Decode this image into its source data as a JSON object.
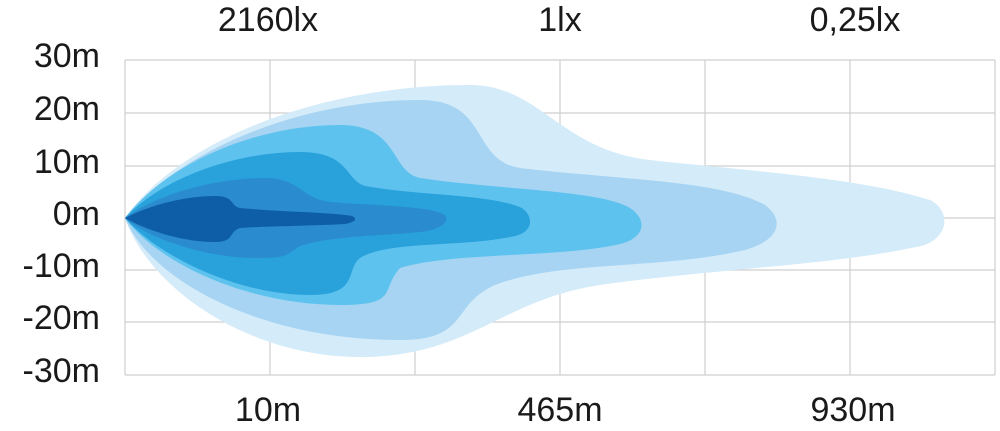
{
  "y_axis": {
    "labels": [
      "30m",
      "20m",
      "10m",
      "0m",
      "-10m",
      "-20m",
      "-30m"
    ]
  },
  "top_labels": [
    "2160lx",
    "1lx",
    "0,25lx"
  ],
  "bottom_labels": [
    "10m",
    "465m",
    "930m"
  ]
}
